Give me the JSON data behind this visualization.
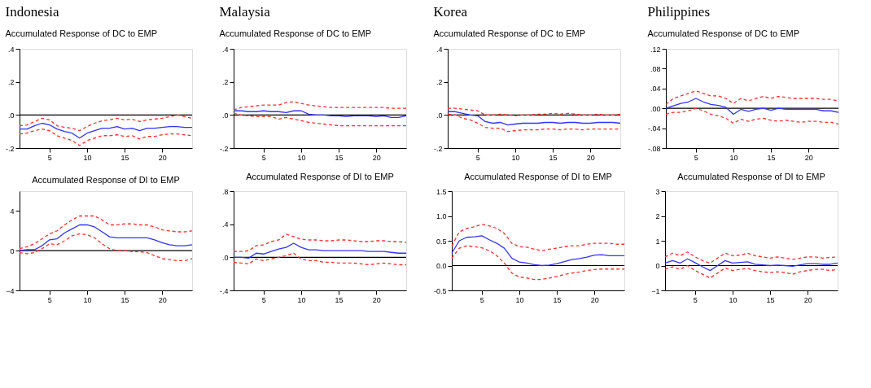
{
  "chart_data": [
    {
      "type": "line",
      "title": "Indonesia",
      "subtitle": "Accumulated Response of DC to EMP",
      "x": [
        1,
        2,
        3,
        4,
        5,
        6,
        7,
        8,
        9,
        10,
        11,
        12,
        13,
        14,
        15,
        16,
        17,
        18,
        19,
        20,
        21,
        22,
        23,
        24
      ],
      "xlim": [
        1,
        24
      ],
      "xticks": [
        5,
        10,
        15,
        20
      ],
      "ylim": [
        -0.2,
        0.4
      ],
      "yticks": [
        {
          "value": -0.2,
          "label": "-.2"
        },
        {
          "value": 0,
          "label": ".0"
        },
        {
          "value": 0.2,
          "label": ".2"
        },
        {
          "value": 0.4,
          "label": ".4"
        }
      ],
      "ref_lines": [
        {
          "axis": "y",
          "value": 0,
          "color": "#000000"
        }
      ],
      "series": [
        {
          "color": "#3333ff",
          "line_style": "solid",
          "values": [
            -0.085,
            -0.085,
            -0.065,
            -0.05,
            -0.06,
            -0.085,
            -0.1,
            -0.11,
            -0.14,
            -0.11,
            -0.095,
            -0.08,
            -0.08,
            -0.07,
            -0.085,
            -0.08,
            -0.095,
            -0.08,
            -0.08,
            -0.075,
            -0.07,
            -0.07,
            -0.075,
            -0.075
          ]
        },
        {
          "color": "#ff3333",
          "line_style": "dashed",
          "values": [
            -0.065,
            -0.06,
            -0.04,
            -0.02,
            -0.03,
            -0.065,
            -0.075,
            -0.08,
            -0.095,
            -0.07,
            -0.05,
            -0.035,
            -0.03,
            -0.02,
            -0.03,
            -0.025,
            -0.04,
            -0.03,
            -0.025,
            -0.02,
            -0.01,
            0,
            -0.01,
            -0.02
          ]
        },
        {
          "color": "#ff3333",
          "line_style": "dashed",
          "values": [
            -0.115,
            -0.11,
            -0.095,
            -0.085,
            -0.095,
            -0.125,
            -0.14,
            -0.155,
            -0.185,
            -0.155,
            -0.14,
            -0.125,
            -0.125,
            -0.12,
            -0.13,
            -0.125,
            -0.145,
            -0.13,
            -0.13,
            -0.12,
            -0.115,
            -0.115,
            -0.12,
            -0.125
          ]
        }
      ]
    },
    {
      "type": "line",
      "title": "Malaysia",
      "subtitle": "Accumulated Response of DC to EMP",
      "x": [
        1,
        2,
        3,
        4,
        5,
        6,
        7,
        8,
        9,
        10,
        11,
        12,
        13,
        14,
        15,
        16,
        17,
        18,
        19,
        20,
        21,
        22,
        23,
        24
      ],
      "xlim": [
        1,
        24
      ],
      "xticks": [
        5,
        10,
        15,
        20
      ],
      "ylim": [
        -0.2,
        0.4
      ],
      "yticks": [
        {
          "value": -0.2,
          "label": "-.2"
        },
        {
          "value": 0,
          "label": ".0"
        },
        {
          "value": 0.2,
          "label": ".2"
        },
        {
          "value": 0.4,
          "label": ".4"
        }
      ],
      "ref_lines": [
        {
          "axis": "y",
          "value": 0,
          "color": "#000000"
        }
      ],
      "series": [
        {
          "color": "#3333ff",
          "line_style": "solid",
          "values": [
            0.025,
            0.025,
            0.02,
            0.02,
            0.025,
            0.02,
            0.02,
            0.015,
            0.025,
            0.025,
            0.005,
            0,
            0,
            -0.005,
            -0.005,
            -0.01,
            -0.005,
            -0.005,
            -0.005,
            -0.01,
            -0.005,
            -0.015,
            -0.015,
            -0.005
          ]
        },
        {
          "color": "#ff3333",
          "line_style": "dashed",
          "values": [
            0.03,
            0.045,
            0.05,
            0.055,
            0.06,
            0.06,
            0.06,
            0.075,
            0.08,
            0.07,
            0.06,
            0.055,
            0.05,
            0.045,
            0.045,
            0.045,
            0.045,
            0.045,
            0.045,
            0.045,
            0.045,
            0.04,
            0.04,
            0.04
          ]
        },
        {
          "color": "#ff3333",
          "line_style": "dashed",
          "values": [
            0.01,
            0,
            -0.005,
            -0.01,
            -0.01,
            -0.01,
            -0.025,
            -0.015,
            -0.025,
            -0.035,
            -0.045,
            -0.05,
            -0.055,
            -0.06,
            -0.065,
            -0.065,
            -0.065,
            -0.065,
            -0.065,
            -0.065,
            -0.065,
            -0.065,
            -0.065,
            -0.065
          ]
        }
      ]
    },
    {
      "type": "line",
      "title": "Korea",
      "subtitle": "Accumulated Response of DC to EMP",
      "x": [
        1,
        2,
        3,
        4,
        5,
        6,
        7,
        8,
        9,
        10,
        11,
        12,
        13,
        14,
        15,
        16,
        17,
        18,
        19,
        20,
        21,
        22,
        23,
        24
      ],
      "xlim": [
        1,
        24
      ],
      "xticks": [
        5,
        10,
        15,
        20
      ],
      "ylim": [
        -0.2,
        0.4
      ],
      "yticks": [
        {
          "value": -0.2,
          "label": "-.2"
        },
        {
          "value": 0,
          "label": ".0"
        },
        {
          "value": 0.2,
          "label": ".2"
        },
        {
          "value": 0.4,
          "label": ".4"
        }
      ],
      "ref_lines": [
        {
          "axis": "y",
          "value": 0,
          "color": "#000000"
        }
      ],
      "series": [
        {
          "color": "#3333ff",
          "line_style": "solid",
          "values": [
            0.02,
            0.02,
            0.01,
            0,
            -0.005,
            -0.04,
            -0.05,
            -0.045,
            -0.06,
            -0.055,
            -0.05,
            -0.05,
            -0.05,
            -0.045,
            -0.045,
            -0.05,
            -0.045,
            -0.045,
            -0.05,
            -0.05,
            -0.045,
            -0.045,
            -0.045,
            -0.05
          ]
        },
        {
          "color": "#ff3333",
          "line_style": "dashed",
          "values": [
            0.04,
            0.04,
            0.035,
            0.03,
            0.025,
            0,
            0,
            0.005,
            0,
            -0.005,
            0,
            0,
            0.005,
            0.005,
            0.01,
            0.005,
            0.01,
            0.005,
            0,
            0,
            0.005,
            0,
            0,
            0.005
          ]
        },
        {
          "color": "#ff3333",
          "line_style": "dashed",
          "values": [
            0.005,
            0,
            -0.02,
            -0.03,
            -0.05,
            -0.075,
            -0.08,
            -0.08,
            -0.1,
            -0.095,
            -0.09,
            -0.09,
            -0.09,
            -0.085,
            -0.085,
            -0.09,
            -0.085,
            -0.085,
            -0.09,
            -0.085,
            -0.085,
            -0.085,
            -0.085,
            -0.085
          ]
        }
      ]
    },
    {
      "type": "line",
      "title": "Philippines",
      "subtitle": "Accumulated Response of DC to EMP",
      "x": [
        1,
        2,
        3,
        4,
        5,
        6,
        7,
        8,
        9,
        10,
        11,
        12,
        13,
        14,
        15,
        16,
        17,
        18,
        19,
        20,
        21,
        22,
        23,
        24
      ],
      "xlim": [
        1,
        24
      ],
      "xticks": [
        5,
        10,
        15,
        20
      ],
      "ylim": [
        -0.08,
        0.12
      ],
      "yticks": [
        {
          "value": -0.08,
          "label": "-.08"
        },
        {
          "value": -0.04,
          "label": "-.04"
        },
        {
          "value": 0,
          "label": ".00"
        },
        {
          "value": 0.04,
          "label": ".04"
        },
        {
          "value": 0.08,
          "label": ".08"
        },
        {
          "value": 0.12,
          "label": ".12"
        }
      ],
      "ref_lines": [
        {
          "axis": "y",
          "value": 0,
          "color": "#000000"
        }
      ],
      "series": [
        {
          "color": "#3333ff",
          "line_style": "solid",
          "values": [
            0,
            0.005,
            0.01,
            0.013,
            0.02,
            0.013,
            0.008,
            0.006,
            0.002,
            -0.012,
            -0.002,
            -0.006,
            -0.002,
            0,
            -0.004,
            0,
            -0.002,
            -0.002,
            -0.002,
            -0.002,
            -0.002,
            -0.005,
            -0.005,
            -0.008
          ]
        },
        {
          "color": "#ff3333",
          "line_style": "dashed",
          "values": [
            0.008,
            0.02,
            0.025,
            0.03,
            0.035,
            0.03,
            0.025,
            0.025,
            0.02,
            0.01,
            0.02,
            0.015,
            0.02,
            0.024,
            0.02,
            0.024,
            0.022,
            0.02,
            0.02,
            0.02,
            0.02,
            0.018,
            0.018,
            0.015
          ]
        },
        {
          "color": "#ff3333",
          "line_style": "dashed",
          "values": [
            -0.012,
            -0.008,
            -0.008,
            -0.005,
            0,
            -0.005,
            -0.012,
            -0.015,
            -0.02,
            -0.03,
            -0.022,
            -0.026,
            -0.022,
            -0.02,
            -0.024,
            -0.026,
            -0.024,
            -0.026,
            -0.028,
            -0.026,
            -0.026,
            -0.028,
            -0.028,
            -0.032
          ]
        }
      ]
    },
    {
      "type": "line",
      "title": "Accumulated Response of DI to EMP",
      "x": [
        1,
        2,
        3,
        4,
        5,
        6,
        7,
        8,
        9,
        10,
        11,
        12,
        13,
        14,
        15,
        16,
        17,
        18,
        19,
        20,
        21,
        22,
        23,
        24
      ],
      "xlim": [
        1,
        24
      ],
      "xticks": [
        5,
        10,
        15,
        20
      ],
      "ylim": [
        -4,
        6
      ],
      "yticks": [
        -4,
        0,
        4
      ],
      "ref_lines": [
        {
          "axis": "y",
          "value": 0,
          "color": "#000000"
        }
      ],
      "series": [
        {
          "color": "#3333ff",
          "line_style": "solid",
          "values": [
            0,
            0.1,
            0.1,
            0.5,
            1.1,
            1.2,
            1.8,
            2.2,
            2.6,
            2.6,
            2.4,
            1.9,
            1.4,
            1.3,
            1.3,
            1.3,
            1.3,
            1.3,
            1.1,
            0.8,
            0.6,
            0.5,
            0.5,
            0.6
          ]
        },
        {
          "color": "#ff3333",
          "line_style": "dashed",
          "values": [
            0.2,
            0.4,
            0.7,
            1.2,
            1.7,
            2,
            2.6,
            3.1,
            3.5,
            3.5,
            3.5,
            3.1,
            2.6,
            2.6,
            2.7,
            2.7,
            2.6,
            2.6,
            2.4,
            2.1,
            2,
            1.9,
            1.9,
            2
          ]
        },
        {
          "color": "#ff3333",
          "line_style": "dashed",
          "values": [
            -0.2,
            -0.3,
            -0.2,
            0.2,
            0.7,
            0.6,
            1,
            1.5,
            1.7,
            1.6,
            1.3,
            0.7,
            0.2,
            0,
            0,
            -0.1,
            -0.1,
            -0.2,
            -0.5,
            -0.8,
            -0.9,
            -1,
            -1,
            -0.8
          ]
        }
      ]
    },
    {
      "type": "line",
      "title": "Accumulated Response of DI to EMP",
      "x": [
        1,
        2,
        3,
        4,
        5,
        6,
        7,
        8,
        9,
        10,
        11,
        12,
        13,
        14,
        15,
        16,
        17,
        18,
        19,
        20,
        21,
        22,
        23,
        24
      ],
      "xlim": [
        1,
        24
      ],
      "xticks": [
        5,
        10,
        15,
        20
      ],
      "ylim": [
        -0.4,
        0.8
      ],
      "yticks": [
        {
          "value": -0.4,
          "label": "-.4"
        },
        {
          "value": 0,
          "label": ".0"
        },
        {
          "value": 0.4,
          "label": ".4"
        },
        {
          "value": 0.8,
          "label": ".8"
        }
      ],
      "ref_lines": [
        {
          "axis": "y",
          "value": 0,
          "color": "#000000"
        }
      ],
      "series": [
        {
          "color": "#3333ff",
          "line_style": "solid",
          "values": [
            0,
            0,
            -0.01,
            0.05,
            0.04,
            0.07,
            0.1,
            0.12,
            0.17,
            0.12,
            0.09,
            0.09,
            0.08,
            0.08,
            0.08,
            0.08,
            0.08,
            0.08,
            0.07,
            0.07,
            0.07,
            0.06,
            0.05,
            0.05
          ]
        },
        {
          "color": "#ff3333",
          "line_style": "dashed",
          "values": [
            0.07,
            0.07,
            0.08,
            0.14,
            0.15,
            0.19,
            0.21,
            0.28,
            0.25,
            0.22,
            0.21,
            0.21,
            0.2,
            0.2,
            0.21,
            0.21,
            0.2,
            0.19,
            0.19,
            0.2,
            0.2,
            0.19,
            0.19,
            0.18
          ]
        },
        {
          "color": "#ff3333",
          "line_style": "dashed",
          "values": [
            -0.06,
            -0.07,
            -0.08,
            -0.02,
            -0.04,
            -0.02,
            0,
            0.02,
            0.05,
            -0.02,
            -0.04,
            -0.04,
            -0.06,
            -0.06,
            -0.07,
            -0.07,
            -0.07,
            -0.08,
            -0.09,
            -0.08,
            -0.07,
            -0.08,
            -0.09,
            -0.09
          ]
        }
      ]
    },
    {
      "type": "line",
      "title": "Accumulated Response of DI to EMP",
      "x": [
        1,
        2,
        3,
        4,
        5,
        6,
        7,
        8,
        9,
        10,
        11,
        12,
        13,
        14,
        15,
        16,
        17,
        18,
        19,
        20,
        21,
        22,
        23,
        24
      ],
      "xlim": [
        1,
        24
      ],
      "xticks": [
        5,
        10,
        15,
        20
      ],
      "ylim": [
        -0.5,
        1.5
      ],
      "yticks": [
        {
          "value": -0.5,
          "label": "-0.5"
        },
        {
          "value": 0,
          "label": "0.0"
        },
        {
          "value": 0.5,
          "label": "0.5"
        },
        {
          "value": 1,
          "label": "1.0"
        },
        {
          "value": 1.5,
          "label": "1.5"
        }
      ],
      "ref_lines": [
        {
          "axis": "y",
          "value": 0,
          "color": "#000000"
        }
      ],
      "series": [
        {
          "color": "#3333ff",
          "line_style": "solid",
          "values": [
            0.25,
            0.5,
            0.57,
            0.58,
            0.6,
            0.52,
            0.45,
            0.35,
            0.15,
            0.07,
            0.05,
            0.02,
            0,
            0.01,
            0.04,
            0.08,
            0.12,
            0.14,
            0.17,
            0.21,
            0.22,
            0.2,
            0.2,
            0.2
          ]
        },
        {
          "color": "#ff3333",
          "line_style": "dashed",
          "values": [
            0.4,
            0.68,
            0.75,
            0.78,
            0.83,
            0.8,
            0.75,
            0.65,
            0.45,
            0.38,
            0.37,
            0.33,
            0.3,
            0.33,
            0.35,
            0.38,
            0.4,
            0.4,
            0.43,
            0.45,
            0.45,
            0.45,
            0.43,
            0.43
          ]
        },
        {
          "color": "#ff3333",
          "line_style": "dashed",
          "values": [
            0.15,
            0.35,
            0.4,
            0.38,
            0.36,
            0.3,
            0.2,
            0.05,
            -0.15,
            -0.23,
            -0.25,
            -0.28,
            -0.28,
            -0.25,
            -0.22,
            -0.18,
            -0.15,
            -0.13,
            -0.1,
            -0.08,
            -0.07,
            -0.07,
            -0.07,
            -0.07
          ]
        }
      ]
    },
    {
      "type": "line",
      "title": "Accumulated Response of DI to EMP",
      "x": [
        1,
        2,
        3,
        4,
        5,
        6,
        7,
        8,
        9,
        10,
        11,
        12,
        13,
        14,
        15,
        16,
        17,
        18,
        19,
        20,
        21,
        22,
        23,
        24
      ],
      "xlim": [
        1,
        24
      ],
      "xticks": [
        5,
        10,
        15,
        20
      ],
      "ylim": [
        -1,
        3
      ],
      "yticks": [
        -1,
        0,
        1,
        2,
        3
      ],
      "ref_lines": [
        {
          "axis": "y",
          "value": 0,
          "color": "#000000"
        }
      ],
      "series": [
        {
          "color": "#3333ff",
          "line_style": "solid",
          "values": [
            0.1,
            0.2,
            0.1,
            0.27,
            0.12,
            -0.05,
            -0.2,
            0,
            0.2,
            0.1,
            0.13,
            0.15,
            0.05,
            0.03,
            0,
            0.02,
            0,
            -0.03,
            0.03,
            0.08,
            0.08,
            0.05,
            0.05,
            0.1
          ]
        },
        {
          "color": "#ff3333",
          "line_style": "dashed",
          "values": [
            0.35,
            0.5,
            0.4,
            0.55,
            0.35,
            0.2,
            0.1,
            0.3,
            0.5,
            0.4,
            0.42,
            0.5,
            0.4,
            0.35,
            0.3,
            0.35,
            0.3,
            0.25,
            0.3,
            0.35,
            0.35,
            0.3,
            0.33,
            0.35
          ]
        },
        {
          "color": "#ff3333",
          "line_style": "dashed",
          "values": [
            -0.15,
            -0.05,
            -0.15,
            0,
            -0.2,
            -0.35,
            -0.5,
            -0.3,
            -0.1,
            -0.2,
            -0.15,
            -0.12,
            -0.2,
            -0.25,
            -0.28,
            -0.25,
            -0.28,
            -0.35,
            -0.25,
            -0.2,
            -0.15,
            -0.15,
            -0.2,
            -0.15
          ]
        }
      ]
    }
  ]
}
